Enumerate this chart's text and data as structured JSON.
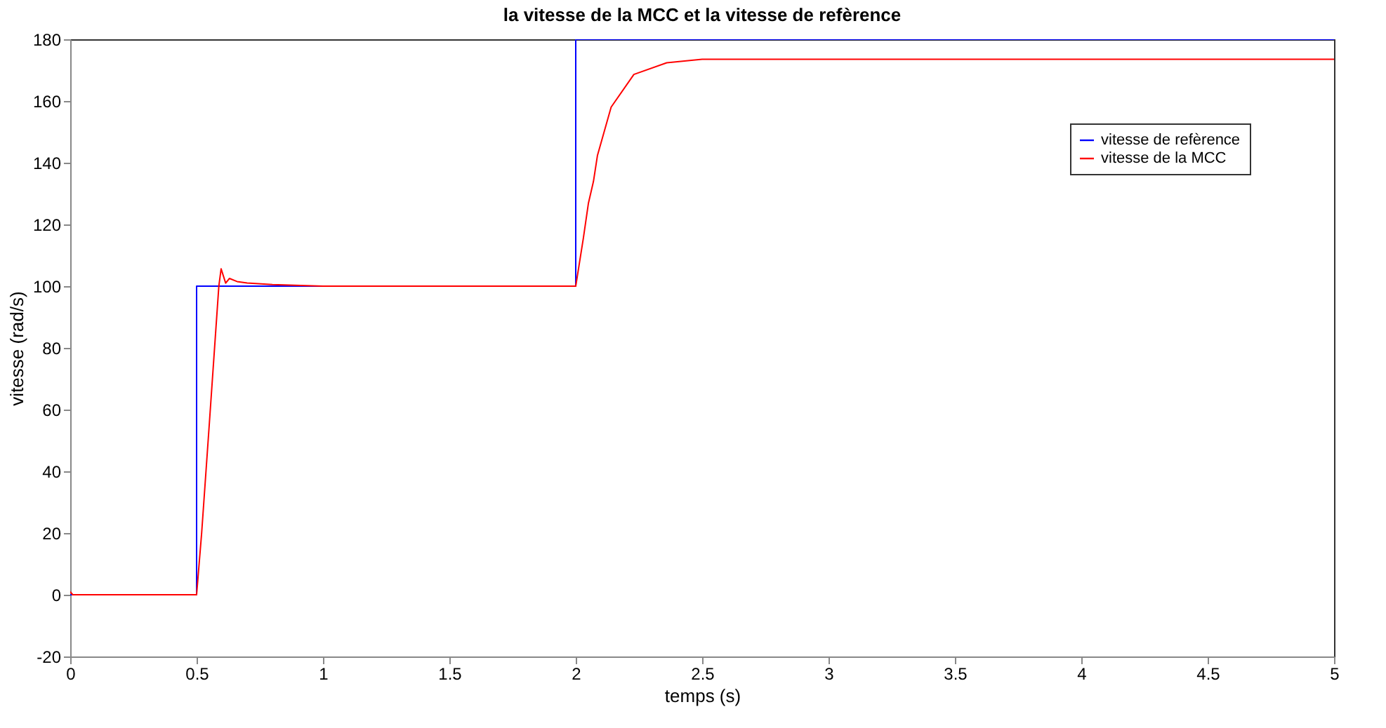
{
  "chart_data": {
    "type": "line",
    "title": "la vitesse de la MCC et la vitesse de refèrence",
    "xlabel": "temps (s)",
    "ylabel": "vitesse (rad/s)",
    "xlim": [
      0,
      5
    ],
    "xticks": [
      0,
      0.5,
      1,
      1.5,
      2,
      2.5,
      3,
      3.5,
      4,
      4.5,
      5
    ],
    "ylim": [
      -20,
      180
    ],
    "yticks": [
      -20,
      0,
      20,
      40,
      60,
      80,
      100,
      120,
      140,
      160,
      180
    ],
    "grid": false,
    "legend": "top right",
    "line_style": "solid",
    "marker": "none",
    "series": [
      {
        "name": "vitesse de refèrence",
        "color": "#0000ff",
        "x": [
          0,
          0.5,
          0.5,
          2,
          2,
          5
        ],
        "values": [
          0,
          0,
          100,
          100,
          180,
          180
        ]
      },
      {
        "name": "vitesse de la MCC",
        "color": "#ff0000",
        "x": [
          0,
          0.01,
          0.5,
          0.52,
          0.55,
          0.588,
          0.597,
          0.615,
          0.63,
          0.66,
          0.7,
          0.8,
          1.0,
          2.0,
          2.03,
          2.05,
          2.07,
          2.086,
          2.14,
          2.23,
          2.36,
          2.5,
          3.0,
          5.0
        ],
        "values": [
          1,
          0,
          0,
          20,
          55,
          100,
          105.6,
          101,
          102.5,
          101.5,
          101,
          100.5,
          100,
          100,
          115.5,
          126.8,
          133.9,
          142.4,
          158,
          168.6,
          172.4,
          173.5,
          173.5,
          173.5
        ]
      }
    ]
  }
}
